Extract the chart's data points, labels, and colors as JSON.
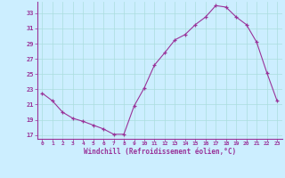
{
  "x": [
    0,
    1,
    2,
    3,
    4,
    5,
    6,
    7,
    8,
    9,
    10,
    11,
    12,
    13,
    14,
    15,
    16,
    17,
    18,
    19,
    20,
    21,
    22,
    23
  ],
  "y": [
    22.5,
    21.5,
    20.0,
    19.2,
    18.8,
    18.3,
    17.8,
    17.1,
    17.1,
    20.8,
    23.2,
    26.2,
    27.8,
    29.5,
    30.2,
    31.5,
    32.5,
    34.0,
    33.8,
    32.5,
    31.5,
    29.2,
    25.2,
    21.5
  ],
  "line_color": "#993399",
  "marker": "+",
  "xlabel": "Windchill (Refroidissement éolien,°C)",
  "yticks": [
    17,
    19,
    21,
    23,
    25,
    27,
    29,
    31,
    33
  ],
  "xticks": [
    0,
    1,
    2,
    3,
    4,
    5,
    6,
    7,
    8,
    9,
    10,
    11,
    12,
    13,
    14,
    15,
    16,
    17,
    18,
    19,
    20,
    21,
    22,
    23
  ],
  "ylim": [
    16.5,
    34.5
  ],
  "xlim": [
    -0.5,
    23.5
  ],
  "bg_color": "#cceeff",
  "grid_color": "#aadddd",
  "axis_color": "#993399",
  "tick_color": "#993399",
  "xlabel_color": "#993399"
}
